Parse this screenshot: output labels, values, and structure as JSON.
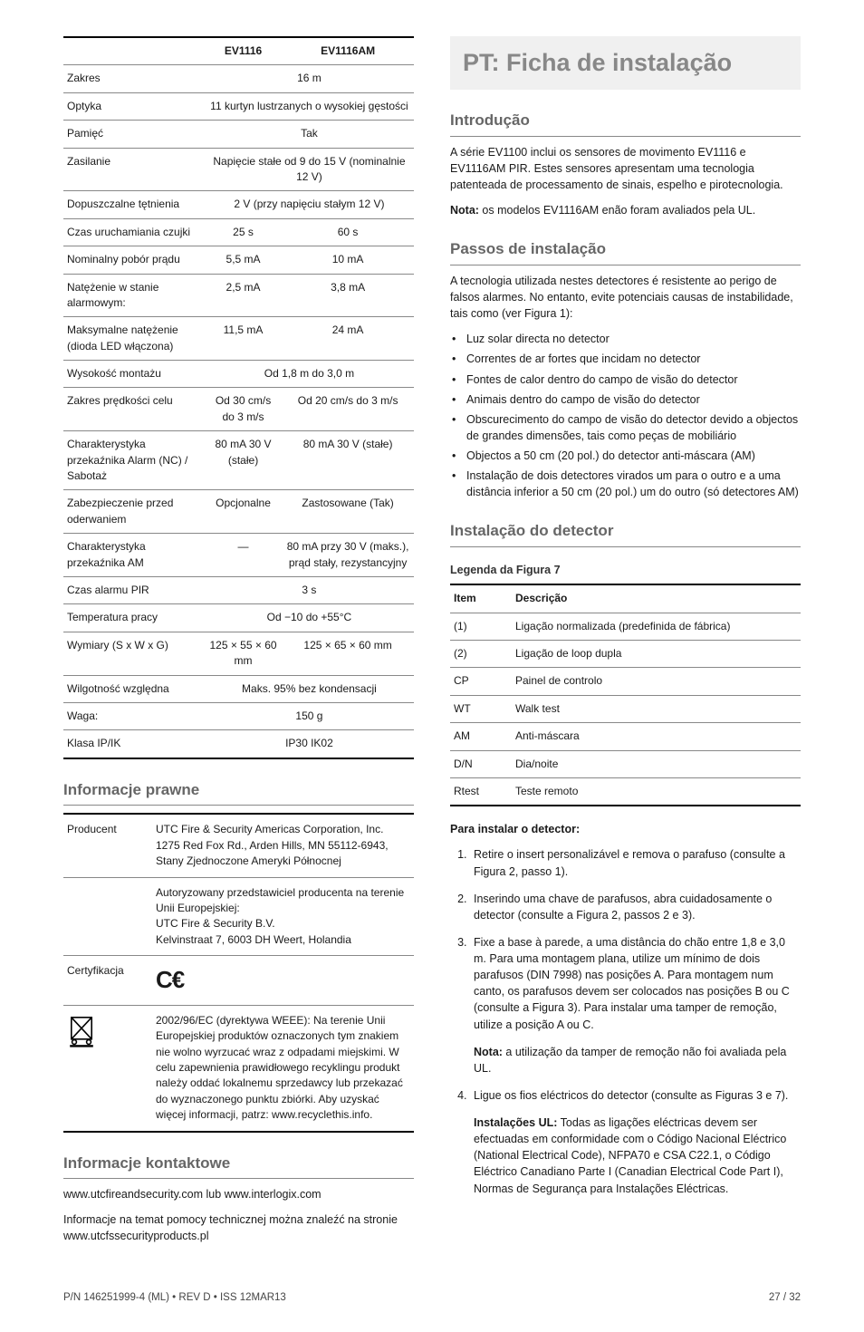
{
  "specs": {
    "headers": [
      "EV1116",
      "EV1116AM"
    ],
    "rows": [
      {
        "label": "Zakres",
        "span": "16 m"
      },
      {
        "label": "Optyka",
        "span": "11 kurtyn lustrzanych o wysokiej gęstości"
      },
      {
        "label": "Pamięć",
        "span": "Tak"
      },
      {
        "label": "Zasilanie",
        "span": "Napięcie stałe od 9 do 15 V (nominalnie 12 V)"
      },
      {
        "label": "Dopuszczalne tętnienia",
        "span": "2 V (przy napięciu stałym 12 V)"
      },
      {
        "label": "Czas uruchamiania czujki",
        "v1": "25 s",
        "v2": "60 s"
      },
      {
        "label": "Nominalny pobór prądu",
        "v1": "5,5 mA",
        "v2": "10 mA"
      },
      {
        "label": "Natężenie w stanie alarmowym:",
        "v1": "2,5 mA",
        "v2": "3,8 mA"
      },
      {
        "label": "Maksymalne natężenie (dioda LED włączona)",
        "v1": "11,5 mA",
        "v2": "24 mA"
      },
      {
        "label": "Wysokość montażu",
        "span": "Od 1,8 m do 3,0 m"
      },
      {
        "label": "Zakres prędkości celu",
        "v1": "Od 30 cm/s do 3 m/s",
        "v2": "Od 20 cm/s do 3 m/s"
      },
      {
        "label": "Charakterystyka przekaźnika Alarm (NC) / Sabotaż",
        "v1": "80 mA 30 V (stałe)",
        "v2": "80 mA 30 V (stałe)"
      },
      {
        "label": "Zabezpieczenie przed oderwaniem",
        "v1": "Opcjonalne",
        "v2": "Zastosowane (Tak)"
      },
      {
        "label": "Charakterystyka przekaźnika AM",
        "v1": "—",
        "v2": "80 mA przy 30 V (maks.), prąd stały, rezystancyjny"
      },
      {
        "label": "Czas alarmu PIR",
        "span": "3 s"
      },
      {
        "label": "Temperatura pracy",
        "span": "Od −10 do +55°C"
      },
      {
        "label": "Wymiary (S x W x G)",
        "v1": "125 × 55 × 60 mm",
        "v2": "125 × 65 × 60 mm"
      },
      {
        "label": "Wilgotność względna",
        "span": "Maks. 95% bez kondensacji"
      },
      {
        "label": "Waga:",
        "span": "150 g"
      },
      {
        "label": "Klasa IP/IK",
        "span": "IP30 IK02"
      }
    ]
  },
  "sections": {
    "info_title": "Informacje prawne",
    "producer_label": "Producent",
    "producer_body": "UTC Fire & Security Americas Corporation, Inc. 1275 Red Fox Rd., Arden Hills, MN 55112-6943, Stany Zjednoczone Ameryki Północnej",
    "rep_body": "Autoryzowany przedstawiciel producenta na terenie Unii Europejskiej:\nUTC Fire & Security B.V.\nKelvinstraat 7, 6003 DH Weert, Holandia",
    "cert_label": "Certyfikacja",
    "weee_body": "2002/96/EC (dyrektywa WEEE): Na terenie Unii Europejskiej produktów oznaczonych tym znakiem nie wolno wyrzucać wraz z odpadami miejskimi. W celu zapewnienia prawidłowego recyklingu produkt należy oddać lokalnemu sprzedawcy lub przekazać do wyznaczonego punktu zbiórki. Aby uzyskać więcej informacji, patrz: www.recyclethis.info.",
    "contact_title": "Informacje kontaktowe",
    "contact_line1": "www.utcfireandsecurity.com lub www.interlogix.com",
    "contact_line2": "Informacje na temat pomocy technicznej można znaleźć na stronie www.utcfssecurityproducts.pl"
  },
  "pt": {
    "title": "PT: Ficha de instalação",
    "intro_h": "Introdução",
    "intro_p": "A série EV1100 inclui os sensores de movimento EV1116 e EV1116AM PIR. Estes sensores apresentam uma tecnologia patenteada de processamento de sinais, espelho e pirotecnologia.",
    "intro_note_b": "Nota:",
    "intro_note": " os modelos EV1116AM enão foram avaliados pela UL.",
    "steps_h": "Passos de instalação",
    "steps_p": "A tecnologia utilizada nestes detectores é resistente ao perigo de falsos alarmes. No entanto, evite potenciais causas de instabilidade, tais como (ver Figura 1):",
    "bullets": [
      "Luz solar directa no detector",
      "Correntes de ar fortes que incidam no detector",
      "Fontes de calor dentro do campo de visão do detector",
      "Animais dentro do campo de visão do detector",
      "Obscurecimento do campo de visão do detector devido a objectos de grandes dimensões, tais como peças de mobiliário",
      "Objectos a 50 cm (20 pol.) do detector anti-máscara (AM)",
      "Instalação de dois detectores virados um para o outro e a uma distância inferior a 50 cm (20 pol.) um do outro (só detectores AM)"
    ],
    "install_h": "Instalação do detector",
    "legend_title": "Legenda da Figura 7",
    "legend_headers": [
      "Item",
      "Descrição"
    ],
    "legend_rows": [
      [
        "(1)",
        "Ligação normalizada (predefinida de fábrica)"
      ],
      [
        "(2)",
        "Ligação de loop dupla"
      ],
      [
        "CP",
        "Painel de controlo"
      ],
      [
        "WT",
        "Walk test"
      ],
      [
        "AM",
        "Anti-máscara"
      ],
      [
        "D/N",
        "Dia/noite"
      ],
      [
        "Rtest",
        "Teste remoto"
      ]
    ],
    "para_title": "Para instalar o detector:",
    "ol": [
      "Retire o insert personalizável e remova o parafuso (consulte a Figura 2, passo 1).",
      "Inserindo uma chave de parafusos, abra cuidadosamente o detector (consulte a Figura 2, passos 2 e 3).",
      "Fixe a base à parede, a uma distância do chão entre 1,8 e 3,0 m. Para uma montagem plana, utilize um mínimo de dois parafusos (DIN 7998) nas posições A. Para montagem num canto, os parafusos devem ser colocados nas posições B ou C (consulte a Figura 3). Para instalar uma tamper de remoção, utilize a posição A ou C.",
      "Ligue os fios eléctricos do detector (consulte as Figuras 3 e 7)."
    ],
    "note3_b": "Nota:",
    "note3": " a utilização da tamper de remoção não foi avaliada pela UL.",
    "ul_b": "Instalações UL:",
    "ul_txt": " Todas as ligações eléctricas devem ser efectuadas em conformidade com o Código Nacional Eléctrico (National Electrical Code), NFPA70 e CSA C22.1, o Código Eléctrico Canadiano Parte I (Canadian Electrical Code Part I), Normas de Segurança para Instalações Eléctricas."
  },
  "footer": {
    "left": "P/N 146251999-4 (ML) • REV D • ISS 12MAR13",
    "right": "27 / 32"
  }
}
